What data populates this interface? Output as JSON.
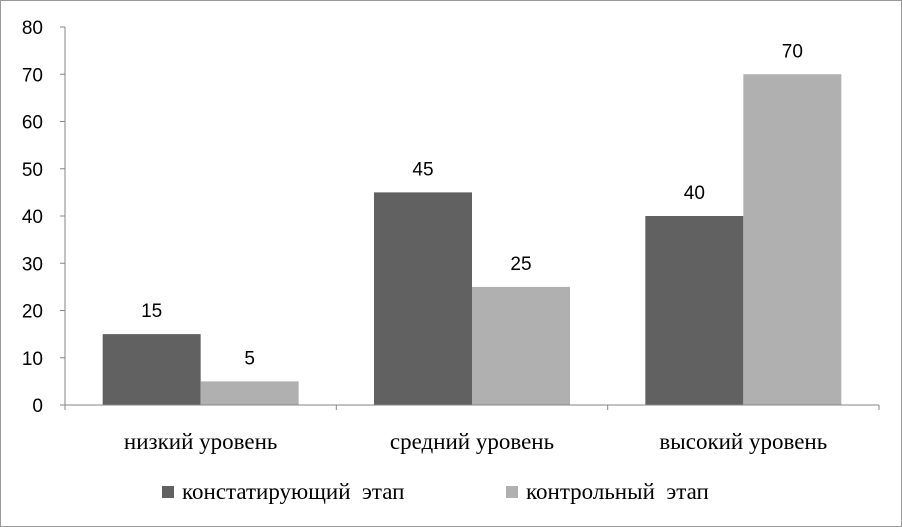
{
  "chart_data": {
    "type": "bar",
    "title": "",
    "xlabel": "",
    "ylabel": "",
    "categories": [
      "низкий уровень",
      "средний уровень",
      "высокий уровень"
    ],
    "series": [
      {
        "name": "констатирующий  этап",
        "values": [
          15,
          45,
          40
        ],
        "color": "#616161"
      },
      {
        "name": "контрольный  этап",
        "values": [
          5,
          25,
          70
        ],
        "color": "#b0b0b0"
      }
    ],
    "ylim": [
      0,
      80
    ],
    "yticks": [
      0,
      10,
      20,
      30,
      40,
      50,
      60,
      70,
      80
    ],
    "grid": false,
    "legend_position": "bottom",
    "data_labels": true
  }
}
